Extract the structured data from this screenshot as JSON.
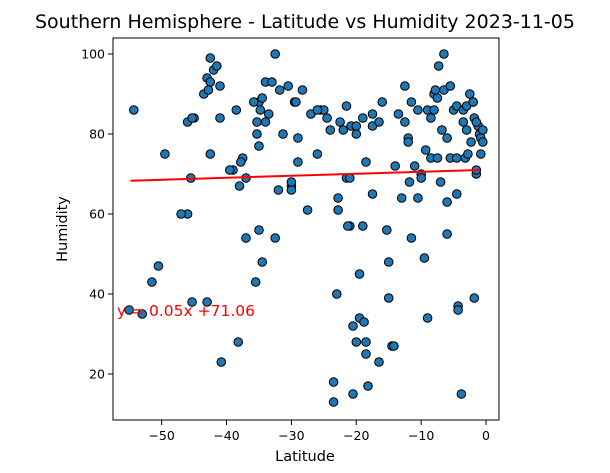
{
  "chart_data": {
    "type": "scatter",
    "title": "Southern Hemisphere - Latitude vs Humidity 2023-11-05",
    "xlabel": "Latitude",
    "ylabel": "Humidity",
    "xlim": [
      -57.5,
      2
    ],
    "ylim": [
      8.5,
      104
    ],
    "xticks": [
      -50,
      -40,
      -30,
      -20,
      -10,
      0
    ],
    "yticks": [
      20,
      40,
      60,
      80,
      100
    ],
    "grid": false,
    "marker_color": "#1f77b4",
    "marker_edge_color": "#000000",
    "regression": {
      "slope": 0.05,
      "intercept": 71.06,
      "x_range": [
        -54.8,
        -0.9
      ],
      "color": "#ff0000",
      "equation_label": "y = 0.05x +71.06",
      "label_color": "#ff0000"
    },
    "points": [
      [
        -54.3,
        86
      ],
      [
        -55,
        36
      ],
      [
        -53,
        35
      ],
      [
        -51.5,
        43
      ],
      [
        -50.5,
        47
      ],
      [
        -49.5,
        75
      ],
      [
        -46,
        83
      ],
      [
        -46,
        60
      ],
      [
        -45.5,
        69
      ],
      [
        -45,
        84
      ],
      [
        -45.3,
        38
      ],
      [
        -43.5,
        90
      ],
      [
        -43,
        94
      ],
      [
        -42.5,
        99
      ],
      [
        -42.5,
        93
      ],
      [
        -42,
        96
      ],
      [
        -42.8,
        91
      ],
      [
        -42.5,
        75
      ],
      [
        -41.5,
        97
      ],
      [
        -41,
        92
      ],
      [
        -41,
        84
      ],
      [
        -40.8,
        23
      ],
      [
        -43,
        38
      ],
      [
        -39,
        71
      ],
      [
        -38.5,
        86
      ],
      [
        -38,
        67
      ],
      [
        -37.5,
        74
      ],
      [
        -37.8,
        73
      ],
      [
        -37,
        54
      ],
      [
        -37,
        69
      ],
      [
        -38.2,
        28
      ],
      [
        -35.5,
        43
      ],
      [
        -35,
        56
      ],
      [
        -34.5,
        48
      ],
      [
        -35,
        88
      ],
      [
        -34.8,
        86
      ],
      [
        -34.5,
        89
      ],
      [
        -34,
        83
      ],
      [
        -34,
        93
      ],
      [
        -35.3,
        80
      ],
      [
        -35.3,
        83
      ],
      [
        -35,
        77
      ],
      [
        -33.5,
        85
      ],
      [
        -33,
        93
      ],
      [
        -32.5,
        100
      ],
      [
        -32.5,
        54
      ],
      [
        -32,
        66
      ],
      [
        -31.8,
        91
      ],
      [
        -31.3,
        80
      ],
      [
        -30.5,
        92
      ],
      [
        -30,
        67
      ],
      [
        -30,
        68
      ],
      [
        -30,
        66
      ],
      [
        -29.5,
        88
      ],
      [
        -29.3,
        88
      ],
      [
        -29,
        79
      ],
      [
        -29,
        73
      ],
      [
        -28.3,
        91
      ],
      [
        -27.5,
        61
      ],
      [
        -27,
        85
      ],
      [
        -26,
        75
      ],
      [
        -25.5,
        86
      ],
      [
        -25,
        86
      ],
      [
        -24.5,
        84
      ],
      [
        -24,
        81
      ],
      [
        -23.5,
        18
      ],
      [
        -23.5,
        13
      ],
      [
        -23,
        40
      ],
      [
        -22.8,
        64
      ],
      [
        -22.8,
        61
      ],
      [
        -22.5,
        83
      ],
      [
        -22,
        81
      ],
      [
        -21.5,
        87
      ],
      [
        -21.5,
        69
      ],
      [
        -21,
        69
      ],
      [
        -21,
        57
      ],
      [
        -21.3,
        57
      ],
      [
        -20.8,
        82
      ],
      [
        -20.5,
        15
      ],
      [
        -20.5,
        32
      ],
      [
        -20,
        80
      ],
      [
        -20,
        82
      ],
      [
        -20,
        28
      ],
      [
        -19.5,
        34
      ],
      [
        -19.5,
        45
      ],
      [
        -19,
        84
      ],
      [
        -19,
        57
      ],
      [
        -18.8,
        33
      ],
      [
        -18.5,
        25
      ],
      [
        -18.5,
        28
      ],
      [
        -18.2,
        17
      ],
      [
        -18.5,
        73
      ],
      [
        -17.5,
        85
      ],
      [
        -17.5,
        65
      ],
      [
        -17.5,
        82
      ],
      [
        -16.5,
        83
      ],
      [
        -16.5,
        23
      ],
      [
        -16,
        88
      ],
      [
        -15.3,
        56
      ],
      [
        -15,
        48
      ],
      [
        -15,
        39
      ],
      [
        -14.5,
        27
      ],
      [
        -14.2,
        27
      ],
      [
        -14,
        72
      ],
      [
        -13.5,
        85
      ],
      [
        -13,
        64
      ],
      [
        -12.5,
        92
      ],
      [
        -12.5,
        83
      ],
      [
        -12,
        79
      ],
      [
        -12,
        78
      ],
      [
        -11.8,
        68
      ],
      [
        -11.5,
        54
      ],
      [
        -11,
        72
      ],
      [
        -10.5,
        64
      ],
      [
        -10.5,
        86
      ],
      [
        -10,
        70
      ],
      [
        -10,
        69
      ],
      [
        -9.5,
        49
      ],
      [
        -9.3,
        76
      ],
      [
        -9,
        86
      ],
      [
        -9,
        34
      ],
      [
        -8.5,
        84
      ],
      [
        -8.5,
        74
      ],
      [
        -8,
        90
      ],
      [
        -7.8,
        91
      ],
      [
        -7.5,
        89
      ],
      [
        -7.5,
        74
      ],
      [
        -7.3,
        97
      ],
      [
        -7,
        68
      ],
      [
        -6.8,
        81
      ],
      [
        -6.5,
        100
      ],
      [
        -6.5,
        91
      ],
      [
        -6,
        79
      ],
      [
        -6,
        63
      ],
      [
        -6,
        55
      ],
      [
        -5.5,
        92
      ],
      [
        -5.5,
        74
      ],
      [
        -5,
        86
      ],
      [
        -4.5,
        87
      ],
      [
        -4.5,
        74
      ],
      [
        -4.5,
        65
      ],
      [
        -4.3,
        37
      ],
      [
        -4.3,
        36
      ],
      [
        -3.8,
        15
      ],
      [
        -3.5,
        83
      ],
      [
        -3.5,
        86
      ],
      [
        -3.2,
        74
      ],
      [
        -3,
        87
      ],
      [
        -3,
        81
      ],
      [
        -2.8,
        75
      ],
      [
        -2.5,
        90
      ],
      [
        -2.3,
        78
      ],
      [
        -2,
        88
      ],
      [
        -1.8,
        84
      ],
      [
        -1.8,
        39
      ],
      [
        -1.5,
        70
      ],
      [
        -1.5,
        71
      ],
      [
        -1.2,
        82
      ],
      [
        -1,
        80
      ],
      [
        -0.8,
        79
      ],
      [
        -0.8,
        75
      ],
      [
        -0.5,
        81
      ],
      [
        -0.5,
        78
      ],
      [
        -1.5,
        83
      ],
      [
        -2,
        88
      ],
      [
        -8,
        86
      ],
      [
        -11.5,
        88
      ],
      [
        -26,
        86
      ],
      [
        -35.8,
        88
      ],
      [
        -45.3,
        84
      ],
      [
        -47,
        60
      ],
      [
        -39.5,
        71
      ]
    ]
  }
}
